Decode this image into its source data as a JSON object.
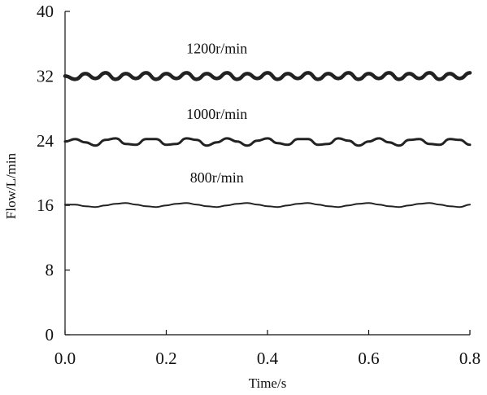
{
  "chart_data": {
    "type": "line",
    "title": "",
    "xlabel": "Time/s",
    "ylabel": "Flow/L/min",
    "xlim": [
      0.0,
      0.8
    ],
    "ylim": [
      0,
      40
    ],
    "xticks": [
      "0.0",
      "0.2",
      "0.4",
      "0.6",
      "0.8"
    ],
    "yticks": [
      "0",
      "8",
      "16",
      "24",
      "32",
      "40"
    ],
    "grid": false,
    "legend": "none",
    "line_color": "#222222",
    "x": [
      0.0,
      0.02,
      0.04,
      0.06,
      0.08,
      0.1,
      0.12,
      0.14,
      0.16,
      0.18,
      0.2,
      0.22,
      0.24,
      0.26,
      0.28,
      0.3,
      0.32,
      0.34,
      0.36,
      0.38,
      0.4,
      0.42,
      0.44,
      0.46,
      0.48,
      0.5,
      0.52,
      0.54,
      0.56,
      0.58,
      0.6,
      0.62,
      0.64,
      0.66,
      0.68,
      0.7,
      0.72,
      0.74,
      0.76,
      0.78,
      0.8
    ],
    "series": [
      {
        "name": "1200r/min",
        "values": [
          32.0,
          31.6,
          32.3,
          31.7,
          32.4,
          31.6,
          32.3,
          31.7,
          32.4,
          31.6,
          32.3,
          31.7,
          32.4,
          31.6,
          32.3,
          31.7,
          32.4,
          31.6,
          32.3,
          31.7,
          32.4,
          31.6,
          32.3,
          31.7,
          32.4,
          31.6,
          32.3,
          31.7,
          32.4,
          31.6,
          32.3,
          31.7,
          32.4,
          31.6,
          32.3,
          31.7,
          32.4,
          31.6,
          32.3,
          31.7,
          32.4
        ]
      },
      {
        "name": "1000r/min",
        "values": [
          23.9,
          24.2,
          23.8,
          23.4,
          24.1,
          24.3,
          23.6,
          23.5,
          24.2,
          24.2,
          23.5,
          23.6,
          24.3,
          24.1,
          23.4,
          23.8,
          24.3,
          23.9,
          23.4,
          24.0,
          24.3,
          23.7,
          23.5,
          24.2,
          24.2,
          23.5,
          23.6,
          24.3,
          24.0,
          23.4,
          23.9,
          24.3,
          23.8,
          23.4,
          24.1,
          24.2,
          23.6,
          23.5,
          24.2,
          24.1,
          23.5
        ]
      },
      {
        "name": "800r/min",
        "values": [
          16.1,
          16.1,
          15.9,
          15.8,
          16.0,
          16.2,
          16.3,
          16.1,
          15.9,
          15.8,
          16.0,
          16.2,
          16.3,
          16.1,
          15.9,
          15.8,
          16.0,
          16.2,
          16.3,
          16.1,
          15.9,
          15.8,
          16.0,
          16.2,
          16.3,
          16.1,
          15.9,
          15.8,
          16.0,
          16.2,
          16.3,
          16.1,
          15.9,
          15.8,
          16.0,
          16.2,
          16.3,
          16.1,
          15.9,
          15.8,
          16.1
        ]
      }
    ]
  }
}
